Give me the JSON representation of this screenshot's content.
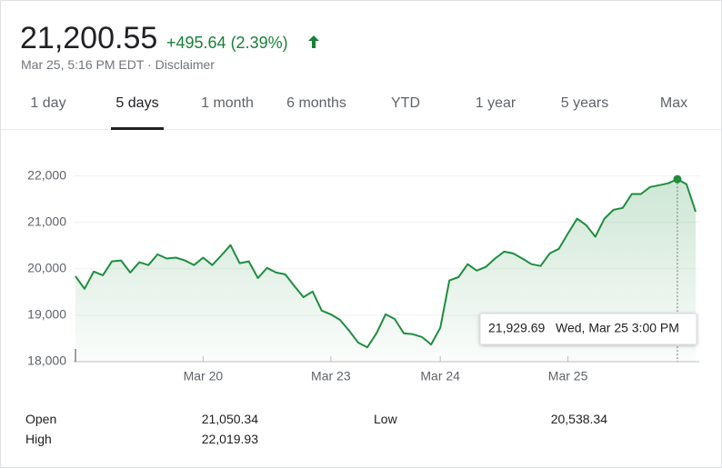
{
  "header": {
    "price": "21,200.55",
    "change": "+495.64 (2.39%)",
    "timestamp": "Mar 25, 5:16 PM EDT",
    "disclaimer": "Disclaimer"
  },
  "tabs": [
    {
      "label": "1 day"
    },
    {
      "label": "5 days",
      "selected": true
    },
    {
      "label": "1 month"
    },
    {
      "label": "6 months"
    },
    {
      "label": "YTD"
    },
    {
      "label": "1 year"
    },
    {
      "label": "5 years"
    },
    {
      "label": "Max"
    }
  ],
  "chart_data": {
    "type": "line",
    "categories": [
      null,
      null,
      null,
      null,
      null,
      null,
      null,
      null,
      null,
      null,
      null,
      null,
      null,
      null,
      "Mar 20",
      null,
      null,
      null,
      null,
      null,
      null,
      null,
      null,
      null,
      null,
      null,
      null,
      null,
      "Mar 23",
      null,
      null,
      null,
      null,
      null,
      null,
      null,
      null,
      null,
      null,
      null,
      "Mar 24",
      null,
      null,
      null,
      null,
      null,
      null,
      null,
      null,
      null,
      null,
      null,
      null,
      null,
      "Mar 25",
      null,
      null,
      null,
      null,
      null,
      null,
      null,
      null,
      null,
      null,
      null,
      null,
      null,
      null
    ],
    "series": [
      {
        "color": "#1e8e3e",
        "values": [
          19840,
          19570,
          19940,
          19860,
          20160,
          20180,
          19920,
          20140,
          20080,
          20310,
          20220,
          20240,
          20180,
          20080,
          20240,
          20080,
          20290,
          20510,
          20120,
          20160,
          19800,
          20020,
          19920,
          19880,
          19630,
          19390,
          19510,
          19100,
          19020,
          18900,
          18670,
          18410,
          18310,
          18610,
          19020,
          18920,
          18610,
          18590,
          18530,
          18370,
          18730,
          19750,
          19820,
          20100,
          19960,
          20040,
          20220,
          20370,
          20330,
          20220,
          20100,
          20060,
          20330,
          20430,
          20760,
          21080,
          20940,
          20690,
          21080,
          21270,
          21310,
          21610,
          21610,
          21760,
          21800,
          21840,
          21929.69,
          21820,
          21230
        ]
      }
    ],
    "ylim": [
      18000,
      22500
    ],
    "yticks": [
      {
        "value": 18000,
        "label": "18,000"
      },
      {
        "value": 19000,
        "label": "19,000"
      },
      {
        "value": 20000,
        "label": "20,000"
      },
      {
        "value": 21000,
        "label": "21,000"
      },
      {
        "value": 22000,
        "label": "22,000"
      }
    ],
    "grid": true,
    "tooltip": {
      "value": 21929.69,
      "label": "21,929.69",
      "date": "Wed, Mar 25 3:00 PM"
    }
  },
  "stats": [
    [
      {
        "name": "Open",
        "value": "21,050.34"
      },
      {
        "name": "Low",
        "value": "20,538.34"
      }
    ],
    [
      {
        "name": "High",
        "value": "22,019.93"
      }
    ]
  ]
}
